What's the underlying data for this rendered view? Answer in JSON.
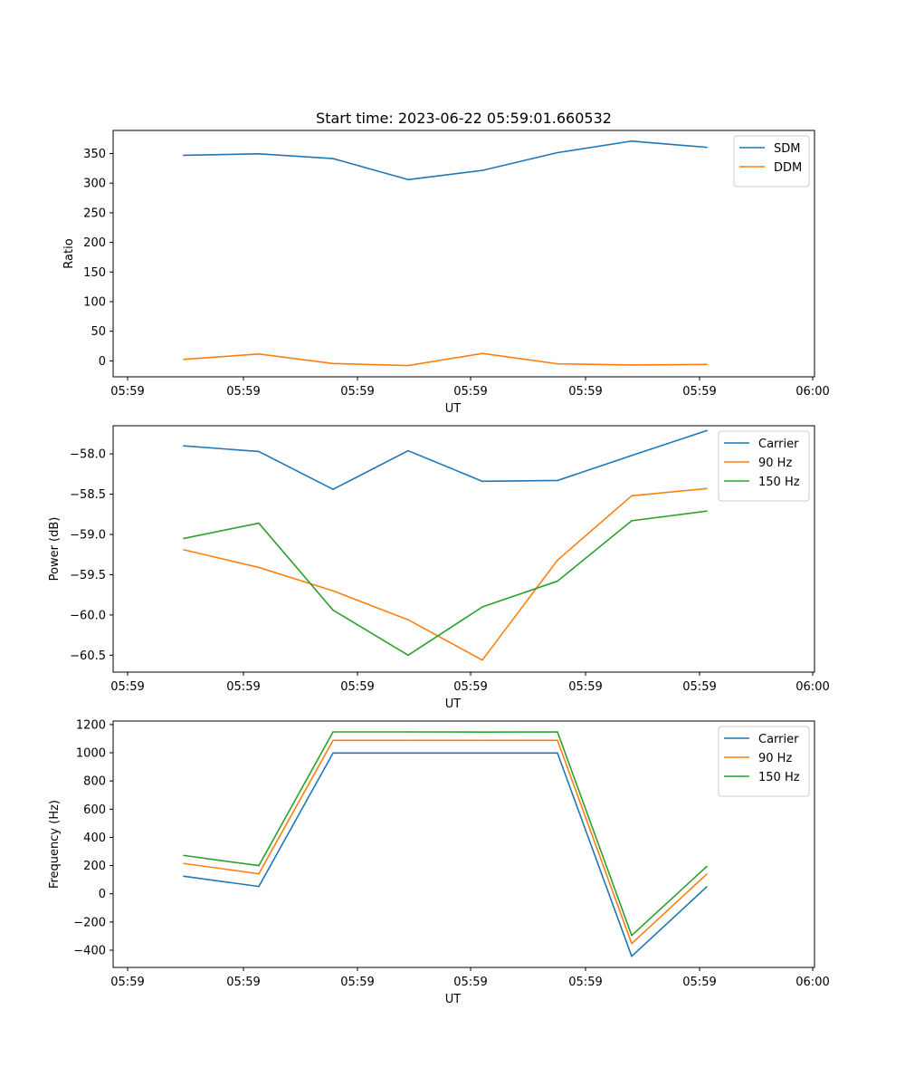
{
  "chart_data": [
    {
      "type": "line",
      "title": "Start time: 2023-06-22 05:59:01.660532",
      "xlabel": "UT",
      "ylabel": "Ratio",
      "x_tick_labels": [
        "05:59",
        "05:59",
        "05:59",
        "05:59",
        "05:59",
        "05:59",
        "06:00"
      ],
      "y_ticks": [
        0,
        50,
        100,
        150,
        200,
        250,
        300,
        350
      ],
      "ylim": [
        -27,
        389
      ],
      "legend_position": "top-right",
      "series": [
        {
          "name": "SDM",
          "color": "#1f77b4",
          "values": [
            347,
            349.5,
            341.5,
            306,
            321.5,
            351.5,
            371,
            360.5
          ]
        },
        {
          "name": "DDM",
          "color": "#ff7f0e",
          "values": [
            2.5,
            11.5,
            -4.5,
            -8,
            12.5,
            -5,
            -7,
            -6
          ]
        }
      ]
    },
    {
      "type": "line",
      "title": "",
      "xlabel": "UT",
      "ylabel": "Power (dB)",
      "x_tick_labels": [
        "05:59",
        "05:59",
        "05:59",
        "05:59",
        "05:59",
        "05:59",
        "06:00"
      ],
      "y_ticks": [
        -58.0,
        -58.5,
        -59.0,
        -59.5,
        -60.0,
        -60.5
      ],
      "y_tick_labels": [
        "−58.0",
        "−58.5",
        "−59.0",
        "−59.5",
        "−60.0",
        "−60.5"
      ],
      "ylim": [
        -60.71,
        -57.65
      ],
      "legend_position": "top-right",
      "series": [
        {
          "name": "Carrier",
          "color": "#1f77b4",
          "values": [
            -57.9,
            -57.97,
            -58.44,
            -57.96,
            -58.34,
            -58.33,
            -58.02,
            -57.71
          ]
        },
        {
          "name": "90 Hz",
          "color": "#ff7f0e",
          "values": [
            -59.19,
            -59.41,
            -59.7,
            -60.06,
            -60.56,
            -59.32,
            -58.52,
            -58.43
          ]
        },
        {
          "name": "150 Hz",
          "color": "#2ca02c",
          "values": [
            -59.05,
            -58.86,
            -59.94,
            -60.5,
            -59.9,
            -59.58,
            -58.83,
            -58.71
          ]
        }
      ]
    },
    {
      "type": "line",
      "title": "",
      "xlabel": "UT",
      "ylabel": "Frequency (Hz)",
      "x_tick_labels": [
        "05:59",
        "05:59",
        "05:59",
        "05:59",
        "05:59",
        "05:59",
        "06:00"
      ],
      "y_ticks": [
        -400,
        -200,
        0,
        200,
        400,
        600,
        800,
        1000,
        1200
      ],
      "y_tick_labels": [
        "−400",
        "−200",
        "0",
        "200",
        "400",
        "600",
        "800",
        "1000",
        "1200"
      ],
      "ylim": [
        -522,
        1225
      ],
      "legend_position": "top-right",
      "series": [
        {
          "name": "Carrier",
          "color": "#1f77b4",
          "values": [
            125,
            52,
            998,
            998,
            998,
            998,
            -443,
            50
          ]
        },
        {
          "name": "90 Hz",
          "color": "#ff7f0e",
          "values": [
            215,
            142,
            1088,
            1088,
            1088,
            1088,
            -353,
            140
          ]
        },
        {
          "name": "150 Hz",
          "color": "#2ca02c",
          "values": [
            272,
            200,
            1148,
            1148,
            1147,
            1148,
            -295,
            194
          ]
        }
      ]
    }
  ]
}
